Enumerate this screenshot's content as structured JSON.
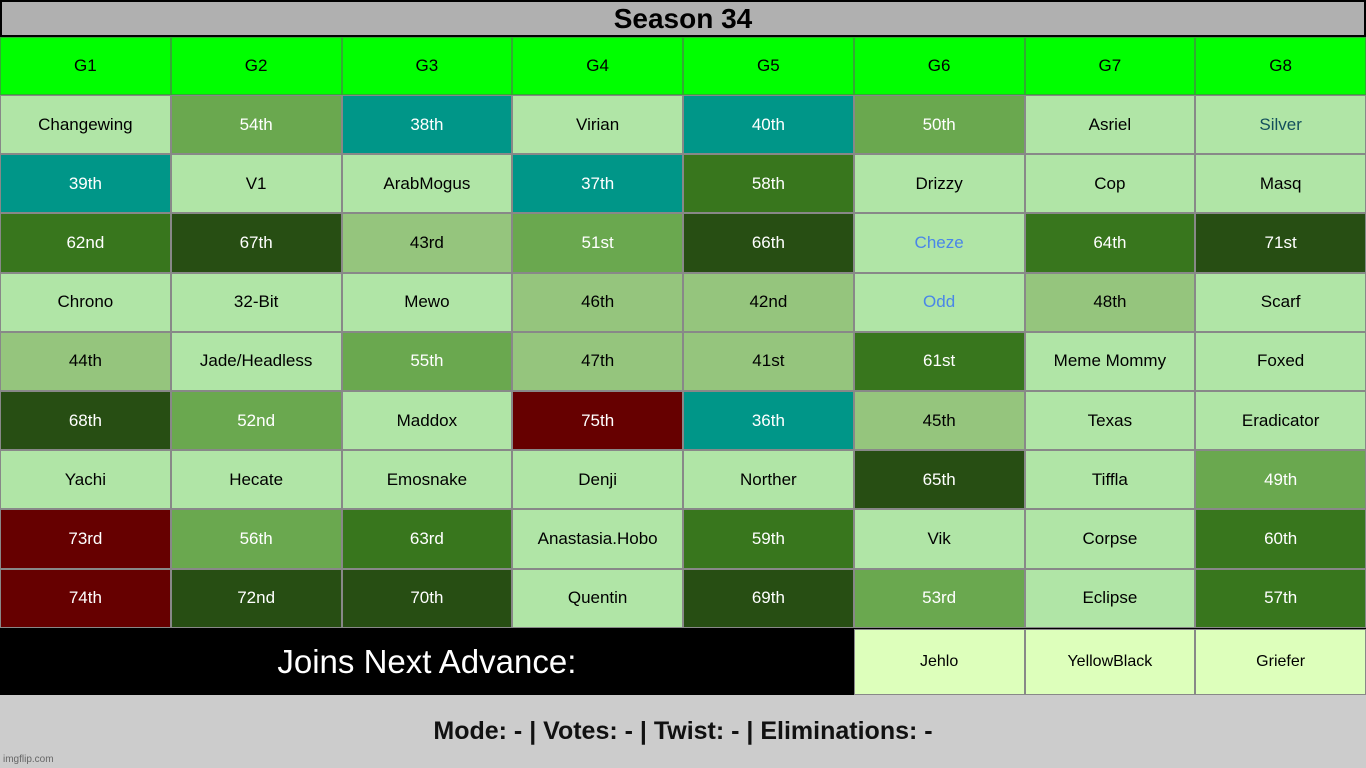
{
  "title": "Season 34",
  "colors": {
    "light": "#b0e5a6",
    "mid": "#95c57d",
    "green": "#6aa84f",
    "dark": "#38761d",
    "darkest": "#274e13",
    "teal": "#009688",
    "red": "#660000",
    "header": "#00ff00",
    "joins_cell": "#ddffbb",
    "blue_text": "#4a86e8",
    "tealtext": "#134f5c"
  },
  "headers": [
    "G1",
    "G2",
    "G3",
    "G4",
    "G5",
    "G6",
    "G7",
    "G8"
  ],
  "rows": [
    [
      {
        "t": "Changewing",
        "c": "light"
      },
      {
        "t": "54th",
        "c": "green"
      },
      {
        "t": "38th",
        "c": "teal"
      },
      {
        "t": "Virian",
        "c": "light"
      },
      {
        "t": "40th",
        "c": "teal"
      },
      {
        "t": "50th",
        "c": "green"
      },
      {
        "t": "Asriel",
        "c": "light"
      },
      {
        "t": "Silver",
        "c": "light",
        "fg": "tealtext"
      }
    ],
    [
      {
        "t": "39th",
        "c": "teal"
      },
      {
        "t": "V1",
        "c": "light"
      },
      {
        "t": "ArabMogus",
        "c": "light"
      },
      {
        "t": "37th",
        "c": "teal"
      },
      {
        "t": "58th",
        "c": "dark"
      },
      {
        "t": "Drizzy",
        "c": "light"
      },
      {
        "t": "Cop",
        "c": "light"
      },
      {
        "t": "Masq",
        "c": "light"
      }
    ],
    [
      {
        "t": "62nd",
        "c": "dark"
      },
      {
        "t": "67th",
        "c": "darkest"
      },
      {
        "t": "43rd",
        "c": "mid"
      },
      {
        "t": "51st",
        "c": "green"
      },
      {
        "t": "66th",
        "c": "darkest"
      },
      {
        "t": "Cheze",
        "c": "light",
        "fg": "blue_text"
      },
      {
        "t": "64th",
        "c": "dark"
      },
      {
        "t": "71st",
        "c": "darkest"
      }
    ],
    [
      {
        "t": "Chrono",
        "c": "light"
      },
      {
        "t": "32-Bit",
        "c": "light"
      },
      {
        "t": "Mewo",
        "c": "light"
      },
      {
        "t": "46th",
        "c": "mid"
      },
      {
        "t": "42nd",
        "c": "mid"
      },
      {
        "t": "Odd",
        "c": "light",
        "fg": "blue_text"
      },
      {
        "t": "48th",
        "c": "mid"
      },
      {
        "t": "Scarf",
        "c": "light"
      }
    ],
    [
      {
        "t": "44th",
        "c": "mid"
      },
      {
        "t": "Jade/Headless",
        "c": "light"
      },
      {
        "t": "55th",
        "c": "green"
      },
      {
        "t": "47th",
        "c": "mid"
      },
      {
        "t": "41st",
        "c": "mid"
      },
      {
        "t": "61st",
        "c": "dark"
      },
      {
        "t": "Meme Mommy",
        "c": "light"
      },
      {
        "t": "Foxed",
        "c": "light"
      }
    ],
    [
      {
        "t": "68th",
        "c": "darkest"
      },
      {
        "t": "52nd",
        "c": "green"
      },
      {
        "t": "Maddox",
        "c": "light"
      },
      {
        "t": "75th",
        "c": "red"
      },
      {
        "t": "36th",
        "c": "teal"
      },
      {
        "t": "45th",
        "c": "mid"
      },
      {
        "t": "Texas",
        "c": "light"
      },
      {
        "t": "Eradicator",
        "c": "light"
      }
    ],
    [
      {
        "t": "Yachi",
        "c": "light"
      },
      {
        "t": "Hecate",
        "c": "light"
      },
      {
        "t": "Emosnake",
        "c": "light"
      },
      {
        "t": "Denji",
        "c": "light"
      },
      {
        "t": "Norther",
        "c": "light"
      },
      {
        "t": "65th",
        "c": "darkest"
      },
      {
        "t": "Tiffla",
        "c": "light"
      },
      {
        "t": "49th",
        "c": "green"
      }
    ],
    [
      {
        "t": "73rd",
        "c": "red"
      },
      {
        "t": "56th",
        "c": "green"
      },
      {
        "t": "63rd",
        "c": "dark"
      },
      {
        "t": "Anastasia.Hobo",
        "c": "light"
      },
      {
        "t": "59th",
        "c": "dark"
      },
      {
        "t": "Vik",
        "c": "light"
      },
      {
        "t": "Corpse",
        "c": "light"
      },
      {
        "t": "60th",
        "c": "dark"
      }
    ],
    [
      {
        "t": "74th",
        "c": "red"
      },
      {
        "t": "72nd",
        "c": "darkest"
      },
      {
        "t": "70th",
        "c": "darkest"
      },
      {
        "t": "Quentin",
        "c": "light"
      },
      {
        "t": "69th",
        "c": "darkest"
      },
      {
        "t": "53rd",
        "c": "green"
      },
      {
        "t": "Eclipse",
        "c": "light"
      },
      {
        "t": "57th",
        "c": "dark"
      }
    ]
  ],
  "joins": {
    "label": "Joins Next Advance:",
    "names": [
      "Jehlo",
      "YellowBlack",
      "Griefer"
    ]
  },
  "footer": "Mode: - | Votes: - | Twist: - | Eliminations: -",
  "watermark": "imgflip.com"
}
